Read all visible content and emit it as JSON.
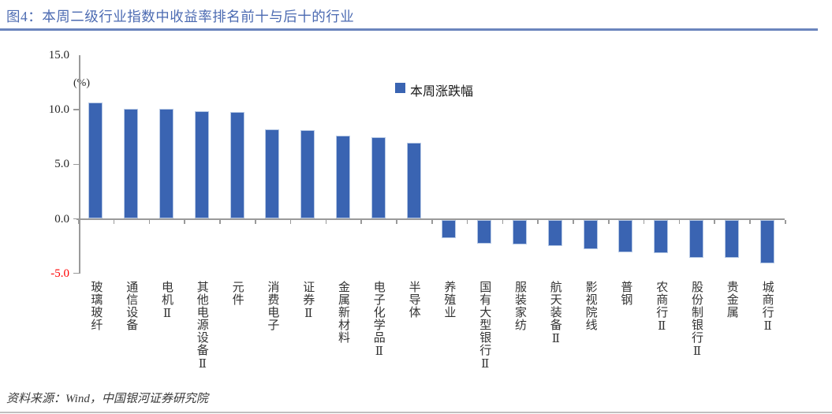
{
  "title": "图4：本周二级行业指数中收益率排名前十与后十的行业",
  "source_note": "资料来源：Wind，中国银河证券研究院",
  "colors": {
    "title": "#4c6bb2",
    "separator": "#6b85bd",
    "bar": "#3a64b2",
    "bar_border": "#b7c9e5",
    "negative_axis_label": "#ff0000"
  },
  "chart_data": {
    "type": "bar",
    "legend": [
      "本周涨跌幅"
    ],
    "unit_label": "(%)",
    "categories": [
      "玻璃玻纤",
      "通信设备",
      "电机Ⅱ",
      "其他电源设备Ⅱ",
      "元件",
      "消费电子",
      "证券Ⅱ",
      "金属新材料",
      "电子化学品Ⅱ",
      "半导体",
      "养殖业",
      "国有大型银行Ⅱ",
      "服装家纺",
      "航天装备Ⅱ",
      "影视院线",
      "普钢",
      "农商行Ⅱ",
      "股份制银行Ⅱ",
      "贵金属",
      "城商行Ⅱ"
    ],
    "values": [
      10.7,
      10.1,
      10.1,
      9.9,
      9.8,
      8.2,
      8.1,
      7.6,
      7.5,
      7.0,
      -1.7,
      -2.2,
      -2.3,
      -2.4,
      -2.7,
      -3.0,
      -3.1,
      -3.5,
      -3.5,
      -4.0
    ],
    "ylim": [
      -5.0,
      15.0
    ],
    "ytick_labels": [
      "15.0",
      "10.0",
      "5.0",
      "0.0",
      "-5.0"
    ],
    "grid": false,
    "legend_position": "top-center",
    "xlabel": "",
    "ylabel": "(%)"
  }
}
